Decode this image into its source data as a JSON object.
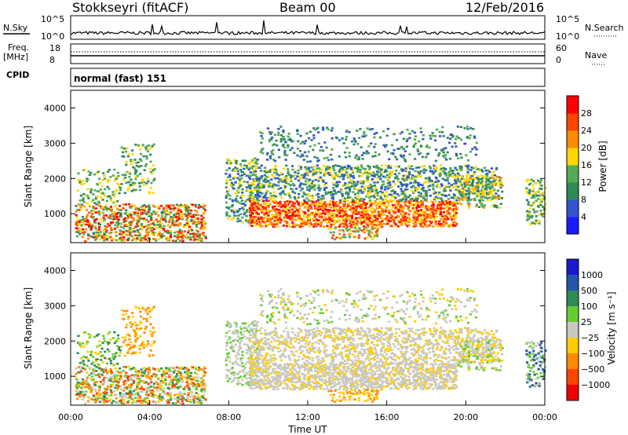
{
  "header": {
    "title": "Stokkseyri (fitACF)",
    "beam": "Beam 00",
    "date": "12/Feb/2016"
  },
  "nsky_panel": {
    "left_label": "N.Sky",
    "right_label": "N.Search",
    "left_ticks": [
      "10^5",
      "10^0"
    ],
    "right_ticks": [
      "10^5",
      "10^0"
    ]
  },
  "freq_panel": {
    "left_label_top": "Freq.",
    "left_label_bottom": "[MHz]",
    "right_label": "Nave",
    "left_ticks": [
      "18",
      "8"
    ],
    "right_ticks": [
      "60",
      "0"
    ]
  },
  "cpid_panel": {
    "label": "CPID",
    "mode": "normal (fast) 151"
  },
  "x_axis": {
    "label": "Time UT",
    "ticks": [
      "00:00",
      "04:00",
      "08:00",
      "12:00",
      "16:00",
      "20:00",
      "00:00"
    ]
  },
  "chart_data": [
    {
      "type": "heatmap",
      "name": "power",
      "ylabel": "Slant Range [km]",
      "yticks": [
        "1000",
        "2000",
        "3000",
        "4000"
      ],
      "ylim": [
        180,
        4500
      ],
      "xlim": [
        "00:00",
        "24:00"
      ],
      "colorbar_label": "Power [dB]",
      "colorbar_ticks": [
        "28",
        "24",
        "20",
        "16",
        "12",
        "8",
        "4"
      ],
      "colors": [
        "#1a1aff",
        "#3355cc",
        "#2e8b57",
        "#55aa55",
        "#ffd700",
        "#ff8c00",
        "#ff4500",
        "#ff0000"
      ]
    },
    {
      "type": "heatmap",
      "name": "velocity",
      "ylabel": "Slant Range [km]",
      "yticks": [
        "1000",
        "2000",
        "3000",
        "4000"
      ],
      "ylim": [
        180,
        4500
      ],
      "xlim": [
        "00:00",
        "24:00"
      ],
      "colorbar_label": "Velocity [m s⁻¹]",
      "colorbar_ticks": [
        "1000",
        "500",
        "100",
        "25",
        "−25",
        "−100",
        "−500",
        "−1000"
      ],
      "colors": [
        "#1a1acc",
        "#2255aa",
        "#2e8b57",
        "#66cc33",
        "#c8c8c0",
        "#ffcc00",
        "#ff8c00",
        "#ff4500",
        "#ee0000"
      ]
    }
  ]
}
